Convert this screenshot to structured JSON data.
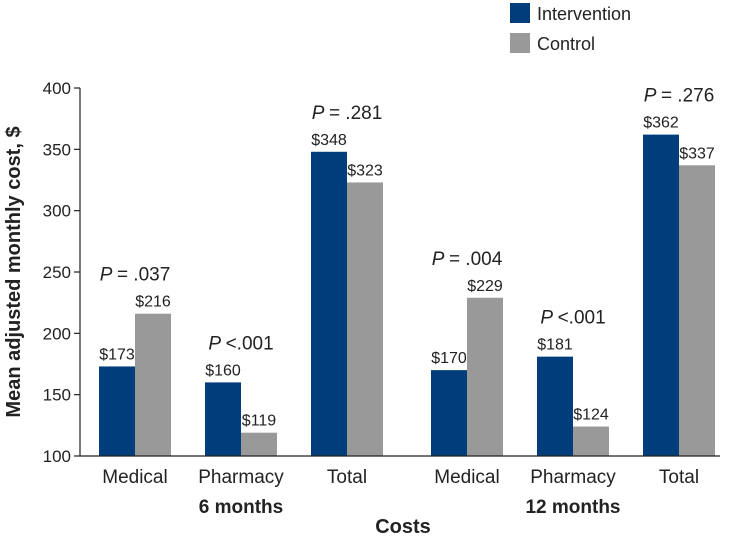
{
  "chart_data": {
    "type": "bar",
    "ylabel": "Mean adjusted monthly cost, $",
    "xlabel": "Costs",
    "ylim": [
      100,
      400
    ],
    "yticks": [
      100,
      150,
      200,
      250,
      300,
      350,
      400
    ],
    "categories": [
      "Medical",
      "Pharmacy",
      "Total",
      "Medical",
      "Pharmacy",
      "Total"
    ],
    "groups": [
      {
        "label": "6 months",
        "categories": [
          0,
          1,
          2
        ]
      },
      {
        "label": "12 months",
        "categories": [
          3,
          4,
          5
        ]
      }
    ],
    "series": [
      {
        "name": "Intervention",
        "color": "#003d7a",
        "values": [
          173,
          160,
          348,
          170,
          181,
          362
        ],
        "labels": [
          "$173",
          "$160",
          "$348",
          "$170",
          "$181",
          "$362"
        ]
      },
      {
        "name": "Control",
        "color": "#999999",
        "values": [
          216,
          119,
          323,
          229,
          124,
          337
        ],
        "labels": [
          "$216",
          "$119",
          "$323",
          "$229",
          "$124",
          "$337"
        ]
      }
    ],
    "p_values": [
      {
        "text": "= .037"
      },
      {
        "text": "<.001"
      },
      {
        "text": "= .281"
      },
      {
        "text": "= .004"
      },
      {
        "text": "<.001"
      },
      {
        "text": "= .276"
      }
    ],
    "p_prefix": "P",
    "legend_position": "top-right",
    "grid": false
  }
}
